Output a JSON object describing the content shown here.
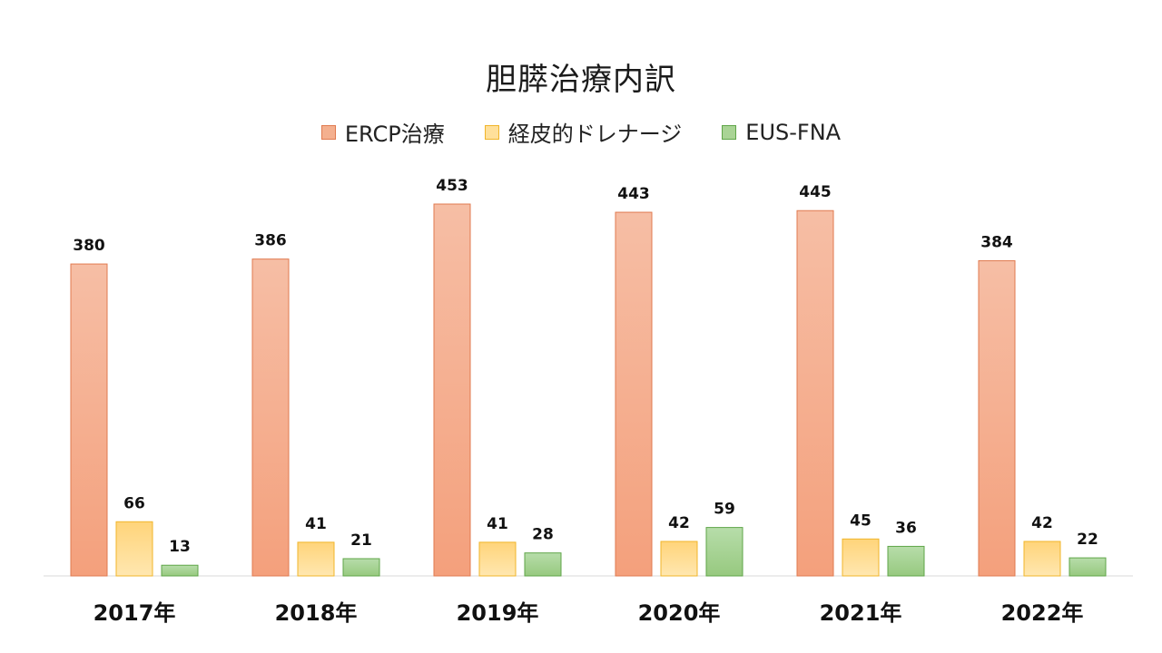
{
  "chart_data": {
    "type": "bar",
    "title": "胆膵治療内訳",
    "categories": [
      "2017年",
      "2018年",
      "2019年",
      "2020年",
      "2021年",
      "2022年"
    ],
    "series": [
      {
        "name": "ERCP治療",
        "values": [
          380,
          386,
          453,
          443,
          445,
          384
        ],
        "color": "#f4a07c"
      },
      {
        "name": "経皮的ドレナージ",
        "values": [
          66,
          41,
          41,
          42,
          45,
          42
        ],
        "color": "#ffd47a"
      },
      {
        "name": "EUS-FNA",
        "values": [
          13,
          21,
          28,
          59,
          36,
          22
        ],
        "color": "#9fd08a"
      }
    ],
    "ylim": [
      0,
      500
    ],
    "legend_position": "top",
    "grid": false,
    "data_labels": true
  }
}
